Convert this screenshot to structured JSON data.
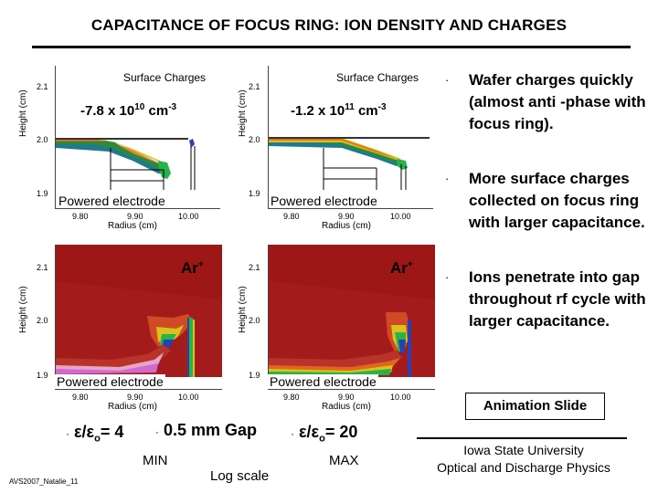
{
  "title": "CAPACITANCE OF FOCUS RING: ION DENSITY AND CHARGES",
  "plots": {
    "surface_title": "Surface Charges",
    "y_label": "Height (cm)",
    "x_label": "Radius (cm)",
    "y_ticks": [
      "2.1",
      "2.0",
      "1.9"
    ],
    "x_ticks": [
      "9.80",
      "9.90",
      "10.00"
    ],
    "electrode_label": "Powered electrode",
    "ion_label": "Ar",
    "ion_charge": "+",
    "left_density": {
      "mantissa": "-7.8 x 10",
      "exponent": "10",
      "unit": " cm",
      "unit_exp": "-3"
    },
    "right_density": {
      "mantissa": "-1.2 x 10",
      "exponent": "11",
      "unit": " cm",
      "unit_exp": "-3"
    }
  },
  "bullets": [
    "Wafer charges quickly (almost anti -phase with focus ring).",
    "More surface charges collected on focus ring with larger capacitance.",
    "Ions penetrate into gap throughout  rf cycle with larger capacitance."
  ],
  "bullet_mark": "·",
  "bottom": {
    "cap_left": {
      "prefix": "ε/ε",
      "sub": "o",
      "suffix": "= 4"
    },
    "gap": "0.5 mm Gap",
    "cap_right": {
      "prefix": "ε/ε",
      "sub": "o",
      "suffix": "= 20"
    },
    "scale_min": "MIN",
    "scale_max": "MAX",
    "log_scale": "Log scale",
    "animation_slide": "Animation Slide",
    "university": "Iowa State University",
    "lab": "Optical and Discharge Physics",
    "footnote": "AVS2007_Natalie_11"
  }
}
